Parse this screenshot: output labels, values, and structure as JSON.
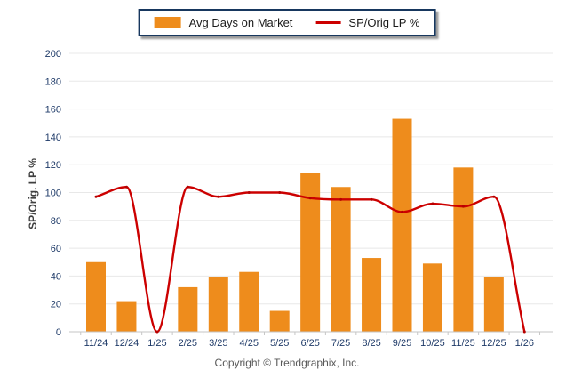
{
  "legend": {
    "items": [
      {
        "label": "Avg Days on Market",
        "swatch": "bar",
        "color": "#EE8C1C"
      },
      {
        "label": "SP/Orig LP %",
        "swatch": "line",
        "color": "#CC0000"
      }
    ]
  },
  "footer": {
    "copyright": "Copyright © Trendgraphix, Inc."
  },
  "colors": {
    "bar": "#EE8C1C",
    "line": "#CC0000",
    "line_marker": "#B50000",
    "gridline": "#E8E8E8",
    "axis": "#C6C6C6",
    "tick_label": "#1E3A68",
    "legend_border": "#17375E"
  },
  "chart_data": {
    "type": "combo",
    "categories": [
      "11/24",
      "12/24",
      "1/25",
      "2/25",
      "3/25",
      "4/25",
      "5/25",
      "6/25",
      "7/25",
      "8/25",
      "9/25",
      "10/25",
      "11/25",
      "12/25",
      "1/26"
    ],
    "series": [
      {
        "name": "Avg Days on Market",
        "type": "bar",
        "color": "#EE8C1C",
        "values": [
          50,
          22,
          0,
          32,
          39,
          43,
          15,
          114,
          104,
          53,
          153,
          49,
          118,
          39,
          0
        ]
      },
      {
        "name": "SP/Orig LP %",
        "type": "line",
        "color": "#CC0000",
        "values": [
          97,
          104,
          0,
          104,
          97,
          100,
          100,
          96,
          95,
          95,
          86,
          92,
          90,
          97,
          0
        ]
      }
    ],
    "title": "",
    "xlabel": "",
    "ylabel": "SP/Orig. LP %",
    "ylim": [
      0,
      200
    ],
    "y_ticks": [
      0,
      20,
      40,
      60,
      80,
      100,
      120,
      140,
      160,
      180,
      200
    ],
    "grid": true,
    "legend_position": "top-center",
    "line_smoothing": "monotone"
  }
}
